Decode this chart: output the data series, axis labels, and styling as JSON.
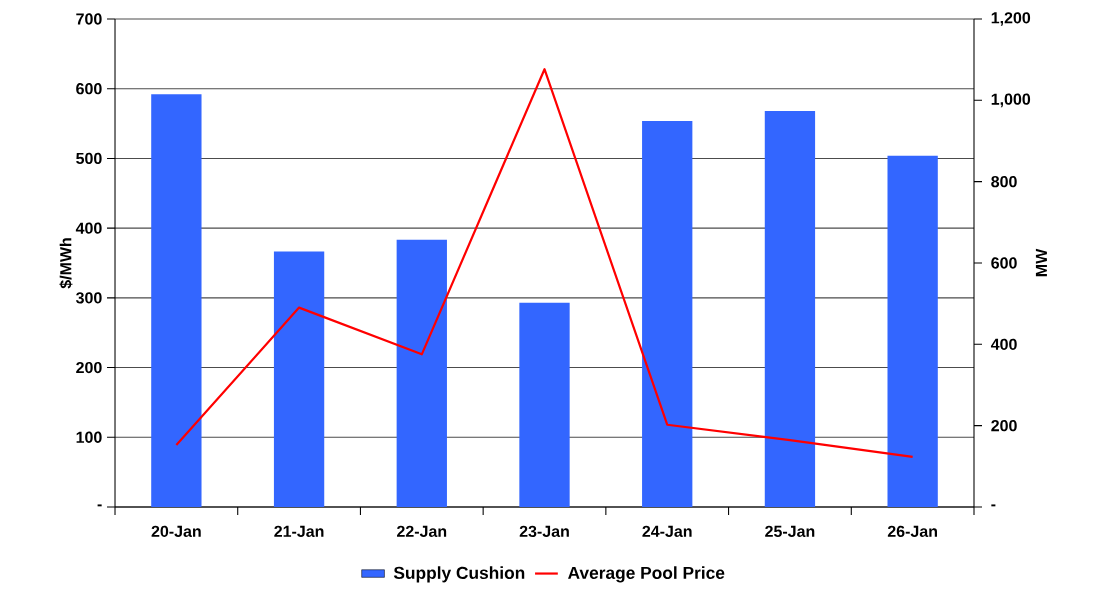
{
  "chart_data": {
    "type": "bar",
    "ylabel": "$/MWh",
    "y2label": "MW",
    "categories": [
      "20-Jan",
      "21-Jan",
      "22-Jan",
      "23-Jan",
      "24-Jan",
      "25-Jan",
      "26-Jan"
    ],
    "series": [
      {
        "name": "Supply Cushion",
        "axis": "y2",
        "color": "#3366ff",
        "values": [
          1015,
          628,
          657,
          502,
          949,
          974,
          864
        ]
      },
      {
        "name": "Average Pool Price",
        "type": "line",
        "color": "#ff0000",
        "values": [
          89,
          286,
          219,
          628,
          118,
          96,
          72
        ]
      }
    ],
    "ylim": [
      0,
      700
    ],
    "yticks": [
      {
        "value": 0,
        "label": "-"
      },
      100,
      200,
      300,
      400,
      500,
      600,
      700
    ],
    "y2lim": [
      0,
      1200
    ],
    "y2ticks": [
      {
        "value": 0,
        "label": "-"
      },
      200,
      400,
      600,
      800,
      {
        "value": 1000,
        "label": "1,000"
      },
      {
        "value": 1200,
        "label": "1,200"
      }
    ],
    "grid": "y",
    "legend": "bottom",
    "marker": "none",
    "line_style": "solid"
  }
}
